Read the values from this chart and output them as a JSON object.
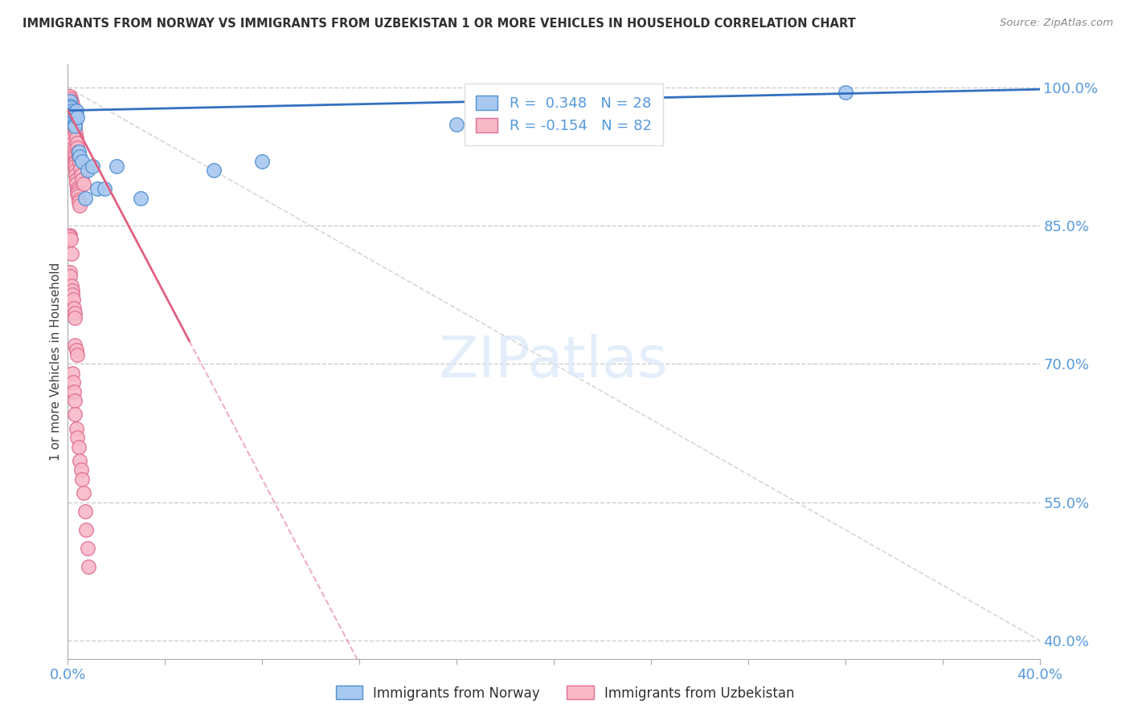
{
  "title": "IMMIGRANTS FROM NORWAY VS IMMIGRANTS FROM UZBEKISTAN 1 OR MORE VEHICLES IN HOUSEHOLD CORRELATION CHART",
  "source": "Source: ZipAtlas.com",
  "ylabel": "1 or more Vehicles in Household",
  "norway_R": 0.348,
  "norway_N": 28,
  "uzbekistan_R": -0.154,
  "uzbekistan_N": 82,
  "norway_color": "#a8c8f0",
  "uzbekistan_color": "#f8b8c8",
  "norway_edge_color": "#5090d0",
  "uzbekistan_edge_color": "#e07090",
  "norway_line_color": "#3370c0",
  "uzbekistan_line_color": "#e06080",
  "diagonal_color": "#cccccc",
  "grid_color": "#cccccc",
  "title_color": "#303030",
  "axis_color": "#5599dd",
  "background_color": "#ffffff",
  "norway_legend": "Immigrants from Norway",
  "uzbekistan_legend": "Immigrants from Uzbekistan",
  "xlim": [
    0.0,
    0.4
  ],
  "ylim": [
    0.38,
    1.025
  ],
  "ytick_values": [
    0.4,
    0.55,
    0.7,
    0.85,
    1.0
  ],
  "norway_x": [
    0.0008,
    0.001,
    0.0012,
    0.0015,
    0.0018,
    0.002,
    0.0022,
    0.0025,
    0.0028,
    0.003,
    0.0033,
    0.0035,
    0.004,
    0.0045,
    0.005,
    0.006,
    0.007,
    0.008,
    0.01,
    0.012,
    0.015,
    0.02,
    0.03,
    0.06,
    0.08,
    0.16,
    0.22,
    0.32
  ],
  "norway_y": [
    0.985,
    0.98,
    0.978,
    0.975,
    0.972,
    0.97,
    0.968,
    0.965,
    0.96,
    0.958,
    0.97,
    0.975,
    0.968,
    0.93,
    0.925,
    0.92,
    0.88,
    0.91,
    0.915,
    0.89,
    0.89,
    0.915,
    0.88,
    0.91,
    0.92,
    0.96,
    0.995,
    0.995
  ],
  "uzbekistan_x": [
    0.0005,
    0.0008,
    0.001,
    0.001,
    0.0012,
    0.0013,
    0.0015,
    0.0015,
    0.0018,
    0.002,
    0.002,
    0.0022,
    0.0022,
    0.0025,
    0.0025,
    0.0028,
    0.0028,
    0.003,
    0.003,
    0.0032,
    0.0032,
    0.0035,
    0.0035,
    0.0038,
    0.004,
    0.004,
    0.0042,
    0.0045,
    0.0045,
    0.0048,
    0.001,
    0.0012,
    0.0015,
    0.0018,
    0.002,
    0.0022,
    0.0025,
    0.0028,
    0.003,
    0.0032,
    0.0035,
    0.0038,
    0.004,
    0.0042,
    0.0045,
    0.005,
    0.0052,
    0.0055,
    0.006,
    0.0065,
    0.0008,
    0.001,
    0.0012,
    0.0015,
    0.0008,
    0.001,
    0.0015,
    0.0018,
    0.002,
    0.0022,
    0.0025,
    0.0028,
    0.003,
    0.003,
    0.0035,
    0.0038,
    0.002,
    0.0022,
    0.0025,
    0.0028,
    0.003,
    0.0035,
    0.004,
    0.0045,
    0.005,
    0.0055,
    0.006,
    0.0065,
    0.007,
    0.0075,
    0.008,
    0.0085
  ],
  "uzbekistan_y": [
    0.985,
    0.98,
    0.975,
    0.97,
    0.965,
    0.96,
    0.958,
    0.955,
    0.95,
    0.948,
    0.945,
    0.94,
    0.935,
    0.932,
    0.928,
    0.925,
    0.92,
    0.918,
    0.915,
    0.91,
    0.905,
    0.9,
    0.895,
    0.89,
    0.888,
    0.885,
    0.882,
    0.878,
    0.875,
    0.872,
    0.99,
    0.988,
    0.985,
    0.982,
    0.978,
    0.975,
    0.968,
    0.96,
    0.955,
    0.95,
    0.945,
    0.94,
    0.935,
    0.93,
    0.925,
    0.918,
    0.912,
    0.905,
    0.9,
    0.895,
    0.84,
    0.838,
    0.835,
    0.82,
    0.8,
    0.795,
    0.785,
    0.78,
    0.775,
    0.77,
    0.76,
    0.755,
    0.75,
    0.72,
    0.715,
    0.71,
    0.69,
    0.68,
    0.67,
    0.66,
    0.645,
    0.63,
    0.62,
    0.61,
    0.595,
    0.585,
    0.575,
    0.56,
    0.54,
    0.52,
    0.5,
    0.48
  ]
}
